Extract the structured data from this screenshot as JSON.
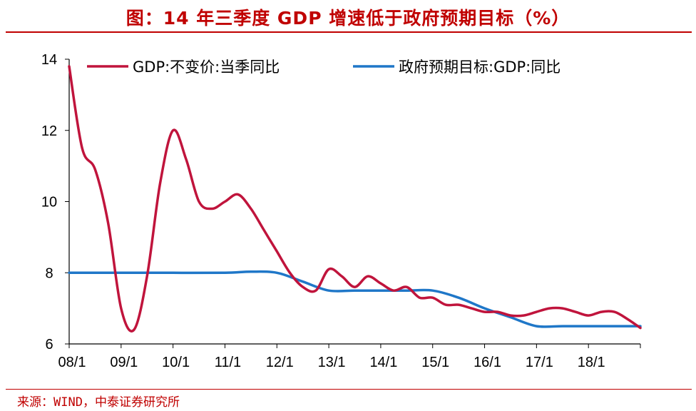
{
  "title": "图：14 年三季度 GDP 增速低于政府预期目标（%）",
  "source": "来源：WIND，中泰证券研究所",
  "colors": {
    "accent": "#c00000",
    "gdp_line": "#c0143c",
    "target_line": "#1f77c8"
  },
  "chart_data": {
    "type": "line",
    "x_tick_labels": [
      "08/1",
      "09/1",
      "10/1",
      "11/1",
      "12/1",
      "13/1",
      "14/1",
      "15/1",
      "16/1",
      "17/1",
      "18/1"
    ],
    "y_ticks": [
      6,
      8,
      10,
      12,
      14
    ],
    "ylim": [
      6,
      14
    ],
    "xlim": [
      2008.0,
      2019.0
    ],
    "grid": false,
    "legend_position": "top",
    "series": [
      {
        "name": "GDP:不变价:当季同比",
        "color": "#c0143c",
        "x": [
          2008.0,
          2008.25,
          2008.5,
          2008.75,
          2009.0,
          2009.25,
          2009.5,
          2009.75,
          2010.0,
          2010.25,
          2010.5,
          2010.75,
          2011.0,
          2011.25,
          2011.5,
          2011.75,
          2012.0,
          2012.25,
          2012.5,
          2012.75,
          2013.0,
          2013.25,
          2013.5,
          2013.75,
          2014.0,
          2014.25,
          2014.5,
          2014.75,
          2015.0,
          2015.25,
          2015.5,
          2015.75,
          2016.0,
          2016.25,
          2016.5,
          2016.75,
          2017.0,
          2017.25,
          2017.5,
          2017.75,
          2018.0,
          2018.25,
          2018.5,
          2018.75,
          2019.0
        ],
        "values": [
          13.8,
          11.5,
          10.9,
          9.4,
          7.0,
          6.4,
          7.9,
          10.5,
          12.0,
          11.2,
          10.0,
          9.8,
          10.0,
          10.2,
          9.8,
          9.2,
          8.6,
          8.0,
          7.6,
          7.5,
          8.1,
          7.9,
          7.6,
          7.9,
          7.7,
          7.5,
          7.6,
          7.3,
          7.3,
          7.1,
          7.1,
          7.0,
          6.9,
          6.9,
          6.8,
          6.8,
          6.9,
          7.0,
          7.0,
          6.9,
          6.8,
          6.9,
          6.9,
          6.7,
          6.45
        ]
      },
      {
        "name": "政府预期目标:GDP:同比",
        "color": "#1f77c8",
        "x": [
          2008.0,
          2009.0,
          2010.0,
          2011.0,
          2011.5,
          2012.0,
          2012.5,
          2013.0,
          2013.5,
          2014.0,
          2014.5,
          2015.0,
          2015.5,
          2016.0,
          2016.5,
          2017.0,
          2017.5,
          2018.0,
          2018.5,
          2019.0
        ],
        "values": [
          8.0,
          8.0,
          8.0,
          8.0,
          8.03,
          8.0,
          7.75,
          7.5,
          7.5,
          7.5,
          7.5,
          7.5,
          7.3,
          7.0,
          6.75,
          6.5,
          6.5,
          6.5,
          6.5,
          6.5
        ]
      }
    ]
  }
}
